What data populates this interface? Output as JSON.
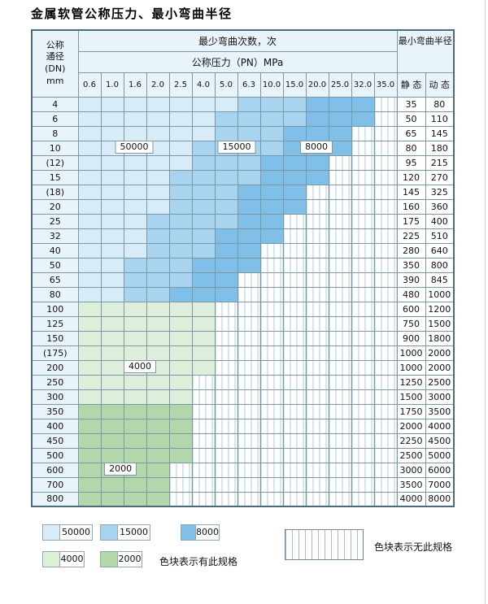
{
  "title": "金属软管公称压力、最小弯曲半径",
  "table": {
    "dn_header_lines": [
      "公称",
      "通径",
      "(DN)",
      "mm"
    ],
    "cycles_header": "最少弯曲次数，次",
    "pressure_header": "公称压力（PN）MPa",
    "radius_header": "最小弯曲半径",
    "static_label": "静 态",
    "dynamic_label": "动 态",
    "pressures": [
      "0.6",
      "1.0",
      "1.6",
      "2.0",
      "2.5",
      "4.0",
      "5.0",
      "6.3",
      "10.0",
      "15.0",
      "20.0",
      "25.0",
      "32.0",
      "35.0"
    ],
    "rows": [
      {
        "dn": "4",
        "static": "35",
        "dynamic": "80",
        "bands": [
          {
            "tier": "c50000",
            "to": 7
          },
          {
            "tier": "c15000",
            "to": 10
          },
          {
            "tier": "c8000",
            "to": 13
          }
        ]
      },
      {
        "dn": "6",
        "static": "50",
        "dynamic": "110",
        "bands": [
          {
            "tier": "c50000",
            "to": 6
          },
          {
            "tier": "c15000",
            "to": 10
          },
          {
            "tier": "c8000",
            "to": 13
          }
        ]
      },
      {
        "dn": "8",
        "static": "65",
        "dynamic": "145",
        "bands": [
          {
            "tier": "c50000",
            "to": 6
          },
          {
            "tier": "c15000",
            "to": 9
          },
          {
            "tier": "c8000",
            "to": 12
          }
        ]
      },
      {
        "dn": "10",
        "static": "80",
        "dynamic": "180",
        "bands": [
          {
            "tier": "c50000",
            "to": 5
          },
          {
            "tier": "c15000",
            "to": 9
          },
          {
            "tier": "c8000",
            "to": 12
          }
        ]
      },
      {
        "dn": "(12)",
        "static": "95",
        "dynamic": "215",
        "bands": [
          {
            "tier": "c50000",
            "to": 5
          },
          {
            "tier": "c15000",
            "to": 8
          },
          {
            "tier": "c8000",
            "to": 11
          }
        ]
      },
      {
        "dn": "15",
        "static": "120",
        "dynamic": "270",
        "bands": [
          {
            "tier": "c50000",
            "to": 4
          },
          {
            "tier": "c15000",
            "to": 8
          },
          {
            "tier": "c8000",
            "to": 11
          }
        ]
      },
      {
        "dn": "(18)",
        "static": "145",
        "dynamic": "325",
        "bands": [
          {
            "tier": "c50000",
            "to": 4
          },
          {
            "tier": "c15000",
            "to": 7
          },
          {
            "tier": "c8000",
            "to": 10
          }
        ]
      },
      {
        "dn": "20",
        "static": "160",
        "dynamic": "360",
        "bands": [
          {
            "tier": "c50000",
            "to": 4
          },
          {
            "tier": "c15000",
            "to": 7
          },
          {
            "tier": "c8000",
            "to": 10
          }
        ]
      },
      {
        "dn": "25",
        "static": "175",
        "dynamic": "400",
        "bands": [
          {
            "tier": "c50000",
            "to": 3
          },
          {
            "tier": "c15000",
            "to": 7
          },
          {
            "tier": "c8000",
            "to": 9
          }
        ]
      },
      {
        "dn": "32",
        "static": "225",
        "dynamic": "510",
        "bands": [
          {
            "tier": "c50000",
            "to": 3
          },
          {
            "tier": "c15000",
            "to": 6
          },
          {
            "tier": "c8000",
            "to": 9
          }
        ]
      },
      {
        "dn": "40",
        "static": "280",
        "dynamic": "640",
        "bands": [
          {
            "tier": "c50000",
            "to": 3
          },
          {
            "tier": "c15000",
            "to": 6
          },
          {
            "tier": "c8000",
            "to": 8
          }
        ]
      },
      {
        "dn": "50",
        "static": "350",
        "dynamic": "800",
        "bands": [
          {
            "tier": "c50000",
            "to": 2
          },
          {
            "tier": "c15000",
            "to": 5
          },
          {
            "tier": "c8000",
            "to": 8
          }
        ]
      },
      {
        "dn": "65",
        "static": "390",
        "dynamic": "845",
        "bands": [
          {
            "tier": "c50000",
            "to": 2
          },
          {
            "tier": "c15000",
            "to": 5
          },
          {
            "tier": "c8000",
            "to": 7
          }
        ]
      },
      {
        "dn": "80",
        "static": "480",
        "dynamic": "1000",
        "bands": [
          {
            "tier": "c50000",
            "to": 2
          },
          {
            "tier": "c15000",
            "to": 4
          },
          {
            "tier": "c8000",
            "to": 7
          }
        ]
      },
      {
        "dn": "100",
        "static": "600",
        "dynamic": "1200",
        "bands": [
          {
            "tier": "c4000",
            "to": 6
          }
        ]
      },
      {
        "dn": "125",
        "static": "750",
        "dynamic": "1500",
        "bands": [
          {
            "tier": "c4000",
            "to": 6
          }
        ]
      },
      {
        "dn": "150",
        "static": "900",
        "dynamic": "1800",
        "bands": [
          {
            "tier": "c4000",
            "to": 6
          }
        ]
      },
      {
        "dn": "(175)",
        "static": "1000",
        "dynamic": "2000",
        "bands": [
          {
            "tier": "c4000",
            "to": 6
          }
        ]
      },
      {
        "dn": "200",
        "static": "1000",
        "dynamic": "2000",
        "bands": [
          {
            "tier": "c4000",
            "to": 6
          }
        ]
      },
      {
        "dn": "250",
        "static": "1250",
        "dynamic": "2500",
        "bands": [
          {
            "tier": "c4000",
            "to": 5
          }
        ]
      },
      {
        "dn": "300",
        "static": "1500",
        "dynamic": "3000",
        "bands": [
          {
            "tier": "c4000",
            "to": 5
          }
        ]
      },
      {
        "dn": "350",
        "static": "1750",
        "dynamic": "3500",
        "bands": [
          {
            "tier": "c2000",
            "to": 5
          }
        ]
      },
      {
        "dn": "400",
        "static": "2000",
        "dynamic": "4000",
        "bands": [
          {
            "tier": "c2000",
            "to": 5
          }
        ]
      },
      {
        "dn": "450",
        "static": "2250",
        "dynamic": "4500",
        "bands": [
          {
            "tier": "c2000",
            "to": 5
          }
        ]
      },
      {
        "dn": "500",
        "static": "2500",
        "dynamic": "5000",
        "bands": [
          {
            "tier": "c2000",
            "to": 5
          }
        ]
      },
      {
        "dn": "600",
        "static": "3000",
        "dynamic": "6000",
        "bands": [
          {
            "tier": "c2000",
            "to": 4
          }
        ]
      },
      {
        "dn": "700",
        "static": "3500",
        "dynamic": "7000",
        "bands": [
          {
            "tier": "c2000",
            "to": 4
          }
        ]
      },
      {
        "dn": "800",
        "static": "4000",
        "dynamic": "8000",
        "bands": [
          {
            "tier": "c2000",
            "to": 4
          }
        ]
      }
    ]
  },
  "colors": {
    "c50000": "#d9edf8",
    "c15000": "#a9d4ef",
    "c8000": "#7fbfe8",
    "c4000": "#ddeeda",
    "c2000": "#b2d7ab"
  },
  "overlay_labels": [
    {
      "text": "50000",
      "row": 4,
      "col": 2.5
    },
    {
      "text": "15000",
      "row": 4,
      "col": 7.0
    },
    {
      "text": "8000",
      "row": 4,
      "col": 10.5
    },
    {
      "text": "4000",
      "row": 19,
      "col": 2.75
    },
    {
      "text": "2000",
      "row": 26,
      "col": 1.9
    }
  ],
  "legend": {
    "items": [
      {
        "label": "50000",
        "tier": "c50000"
      },
      {
        "label": "15000",
        "tier": "c15000"
      },
      {
        "label": "8000",
        "tier": "c8000"
      },
      {
        "label": "4000",
        "tier": "c4000"
      },
      {
        "label": "2000",
        "tier": "c2000"
      }
    ],
    "has_spec_text": "色块表示有此规格",
    "no_spec_text": "色块表示无此规格"
  }
}
